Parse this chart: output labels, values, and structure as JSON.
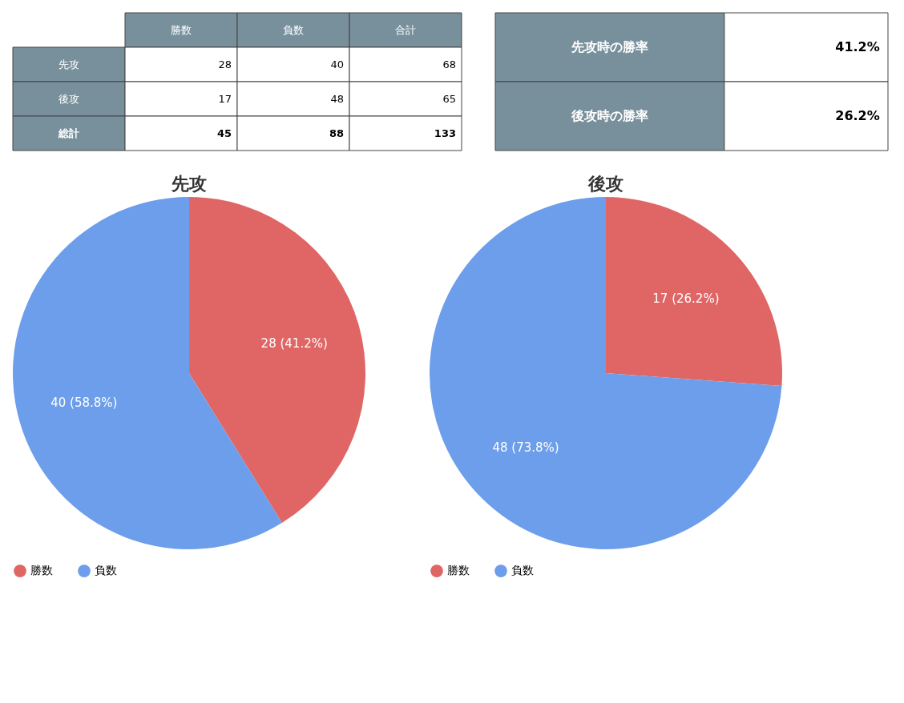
{
  "chart_data": [
    {
      "type": "other",
      "categories": [
        "勝数",
        "負数",
        "合計"
      ],
      "y_categories": [
        "先攻",
        "後攻",
        "総計"
      ],
      "cell_labels": [
        [
          "28",
          "40",
          "68"
        ],
        [
          "17",
          "48",
          "65"
        ],
        [
          "45",
          "88",
          "133"
        ]
      ]
    },
    {
      "type": "other",
      "y_categories": [
        "先攻時の勝率",
        "後攻時の勝率"
      ],
      "cell_labels": [
        [
          "41.2%"
        ],
        [
          "26.2%"
        ]
      ]
    },
    {
      "type": "pie",
      "title": "先攻",
      "categories": [
        "勝数",
        "負数"
      ],
      "values": [
        28,
        40
      ],
      "colors": [
        "#e06666",
        "#6d9eeb"
      ],
      "value_labels": [
        "28 (41.2%)",
        "40 (58.8%)"
      ],
      "legend": "bottom"
    },
    {
      "type": "pie",
      "title": "後攻",
      "categories": [
        "勝数",
        "負数"
      ],
      "values": [
        17,
        48
      ],
      "colors": [
        "#e06666",
        "#6d9eeb"
      ],
      "value_labels": [
        "17 (26.2%)",
        "48 (73.8%)"
      ],
      "legend": "bottom"
    }
  ]
}
